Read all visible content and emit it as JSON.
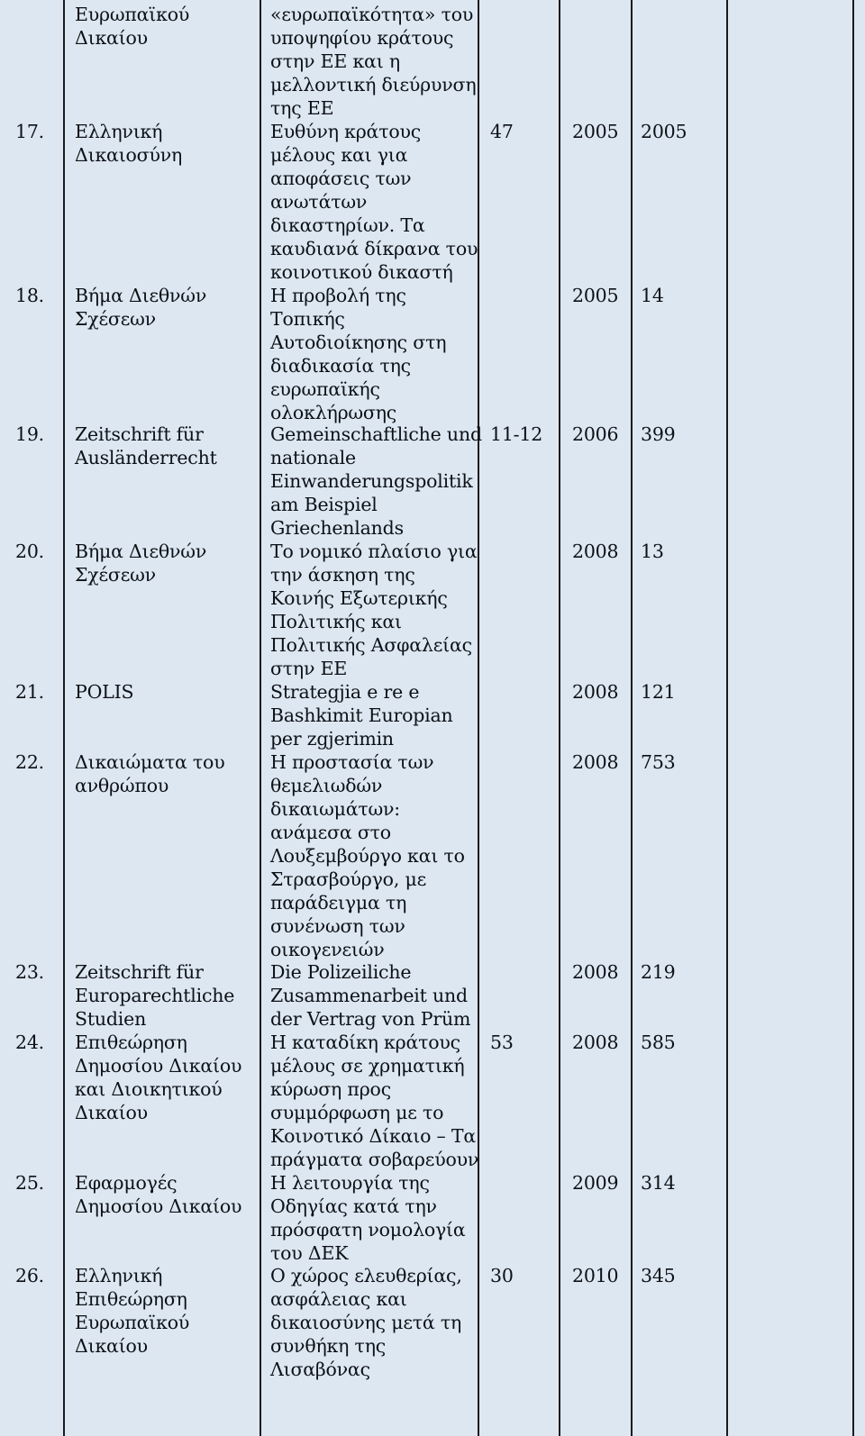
{
  "table": {
    "top_fragment": {
      "journal": "Ευρωπαϊκού\nΔικαίου",
      "title": "«ευρωπαϊκότητα» του\nυποψηφίου κράτους\nστην ΕΕ και η\nμελλοντική διεύρυνση\nτης ΕΕ"
    },
    "rows": [
      {
        "num": "17.",
        "journal": "Ελληνική\nΔικαιοσύνη",
        "title": "Ευθύνη κράτους\nμέλους και για\nαποφάσεις των\nανωτάτων\nδικαστηρίων. Τα\nκαυδιανά δίκρανα του\nκοινοτικού δικαστή",
        "issue": "47",
        "year": "2005",
        "page": "2005"
      },
      {
        "num": "18.",
        "journal": "Βήμα Διεθνών\nΣχέσεων",
        "title": "Η προβολή της\nΤοπικής\nΑυτοδιοίκησης στη\nδιαδικασία της\nευρωπαϊκής\nολοκλήρωσης",
        "issue": "",
        "year": "2005",
        "page": "14"
      },
      {
        "num": "19.",
        "journal": "Zeitschrift für\nAusländerrecht",
        "title": "Gemeinschaftliche und\nnationale\nEinwanderungspolitik\nam Beispiel\nGriechenlands",
        "issue": "11-12",
        "year": "2006",
        "page": "399"
      },
      {
        "num": "20.",
        "journal": "Βήμα Διεθνών\nΣχέσεων",
        "title": "Το νομικό πλαίσιο για\nτην άσκηση της\nΚοινής Εξωτερικής\nΠολιτικής και\nΠολιτικής Ασφαλείας\nστην ΕΕ",
        "issue": "",
        "year": "2008",
        "page": "13"
      },
      {
        "num": "21.",
        "journal": "POLIS",
        "title": "Strategjia e re e\nBashkimit Europian\nper zgjerimin",
        "issue": "",
        "year": "2008",
        "page": "121"
      },
      {
        "num": "22.",
        "journal": "Δικαιώματα του\nανθρώπου",
        "title": "Η προστασία των\nθεμελιωδών\nδικαιωμάτων:\nανάμεσα στο\nΛουξεμβούργο και το\nΣτρασβούργο, με\nπαράδειγμα τη\nσυνένωση των\nοικογενειών",
        "issue": "",
        "year": "2008",
        "page": "753"
      },
      {
        "num": "23.",
        "journal": "Zeitschrift für\nEuroparechtliche\nStudien",
        "title": "Die Polizeiliche\nZusammenarbeit und\nder Vertrag von Prüm",
        "issue": "",
        "year": "2008",
        "page": "219"
      },
      {
        "num": "24.",
        "journal": "Επιθεώρηση\nΔημοσίου Δικαίου\nκαι Διοικητικού\nΔικαίου",
        "title": "Η καταδίκη κράτους\nμέλους σε χρηματική\nκύρωση προς\nσυμμόρφωση με το\nΚοινοτικό Δίκαιο – Τα\nπράγματα σοβαρεύουν",
        "issue": "53",
        "year": "2008",
        "page": "585"
      },
      {
        "num": "25.",
        "journal": "Εφαρμογές\nΔημοσίου Δικαίου",
        "title": "Η λειτουργία της\nΟδηγίας κατά την\nπρόσφατη νομολογία\nτου ΔΕΚ",
        "issue": "",
        "year": "2009",
        "page": "314"
      },
      {
        "num": "26.",
        "journal": "Ελληνική\nΕπιθεώρηση\nΕυρωπαϊκού\nΔικαίου",
        "title": "Ο χώρος ελευθερίας,\nασφάλειας και\nδικαιοσύνης μετά τη\nσυνθήκη της\nΛισαβόνας",
        "issue": "30",
        "year": "2010",
        "page": "345"
      }
    ]
  }
}
